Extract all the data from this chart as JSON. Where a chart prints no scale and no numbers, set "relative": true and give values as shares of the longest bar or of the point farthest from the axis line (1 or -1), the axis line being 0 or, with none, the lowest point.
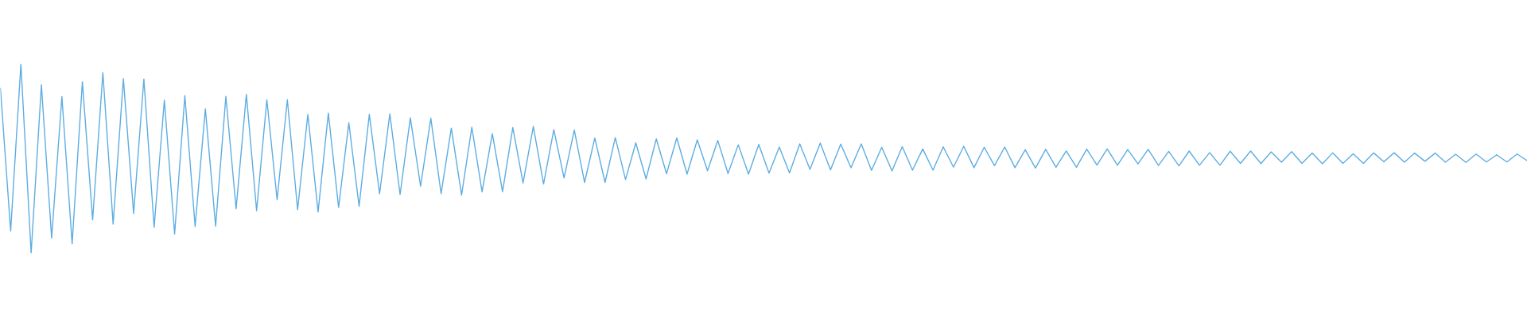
{
  "chart_data": {
    "type": "line",
    "relative": true,
    "color": "#5dade2",
    "categories": [
      null,
      null,
      null,
      null,
      null,
      null,
      null,
      null,
      null,
      null,
      null,
      null,
      null,
      null,
      null,
      null,
      null,
      null,
      null,
      null,
      null,
      null,
      null,
      null,
      null,
      null,
      null,
      null,
      null,
      null,
      null,
      null,
      null,
      null,
      null,
      null,
      null,
      null,
      null,
      null,
      null,
      null,
      null,
      null,
      null,
      null,
      null,
      null,
      null,
      null,
      null,
      null,
      null,
      null,
      null,
      null,
      null,
      null,
      null,
      null,
      null,
      null,
      null,
      null,
      null,
      null,
      null,
      null,
      null,
      null,
      null,
      null,
      null,
      null,
      null,
      null,
      null,
      null,
      null,
      null,
      null,
      null,
      null,
      null,
      null,
      null,
      null,
      null,
      null,
      null,
      null,
      null,
      null,
      null,
      null,
      null,
      null,
      null,
      null,
      null,
      null,
      null,
      null,
      null,
      null,
      null,
      null,
      null,
      null,
      null,
      null,
      null,
      null,
      null,
      null,
      null,
      null,
      null,
      null,
      null,
      null,
      null,
      null,
      null,
      null,
      null,
      null,
      null,
      null,
      null,
      null,
      null,
      null,
      null,
      null,
      null,
      null,
      null,
      null,
      null,
      null,
      null,
      null,
      null,
      null,
      null,
      null,
      null,
      null,
      null
    ],
    "values": [
      0.874,
      0.117,
      1.0,
      0.0,
      0.89,
      0.08,
      0.828,
      0.05,
      0.906,
      0.176,
      0.954,
      0.154,
      0.923,
      0.21,
      0.92,
      0.137,
      0.809,
      0.101,
      0.833,
      0.141,
      0.763,
      0.143,
      0.829,
      0.235,
      0.84,
      0.225,
      0.811,
      0.283,
      0.811,
      0.23,
      0.733,
      0.218,
      0.741,
      0.242,
      0.689,
      0.248,
      0.734,
      0.314,
      0.737,
      0.311,
      0.716,
      0.354,
      0.714,
      0.315,
      0.661,
      0.307,
      0.666,
      0.324,
      0.632,
      0.325,
      0.664,
      0.371,
      0.67,
      0.366,
      0.653,
      0.398,
      0.651,
      0.374,
      0.609,
      0.374,
      0.611,
      0.389,
      0.583,
      0.393,
      0.604,
      0.42,
      0.609,
      0.418,
      0.599,
      0.436,
      0.596,
      0.421,
      0.573,
      0.418,
      0.575,
      0.423,
      0.561,
      0.424,
      0.578,
      0.443,
      0.582,
      0.44,
      0.577,
      0.452,
      0.578,
      0.438,
      0.56,
      0.435,
      0.563,
      0.439,
      0.551,
      0.439,
      0.562,
      0.455,
      0.565,
      0.452,
      0.56,
      0.463,
      0.561,
      0.452,
      0.547,
      0.45,
      0.549,
      0.454,
      0.54,
      0.454,
      0.55,
      0.466,
      0.551,
      0.465,
      0.548,
      0.472,
      0.549,
      0.464,
      0.538,
      0.462,
      0.54,
      0.465,
      0.532,
      0.465,
      0.539,
      0.475,
      0.54,
      0.474,
      0.536,
      0.481,
      0.537,
      0.475,
      0.529,
      0.473,
      0.53,
      0.475,
      0.525,
      0.475,
      0.53,
      0.483,
      0.531,
      0.481,
      0.529,
      0.486,
      0.529,
      0.481,
      0.523,
      0.48,
      0.524,
      0.482,
      0.52,
      0.482,
      0.524,
      0.488
    ]
  }
}
